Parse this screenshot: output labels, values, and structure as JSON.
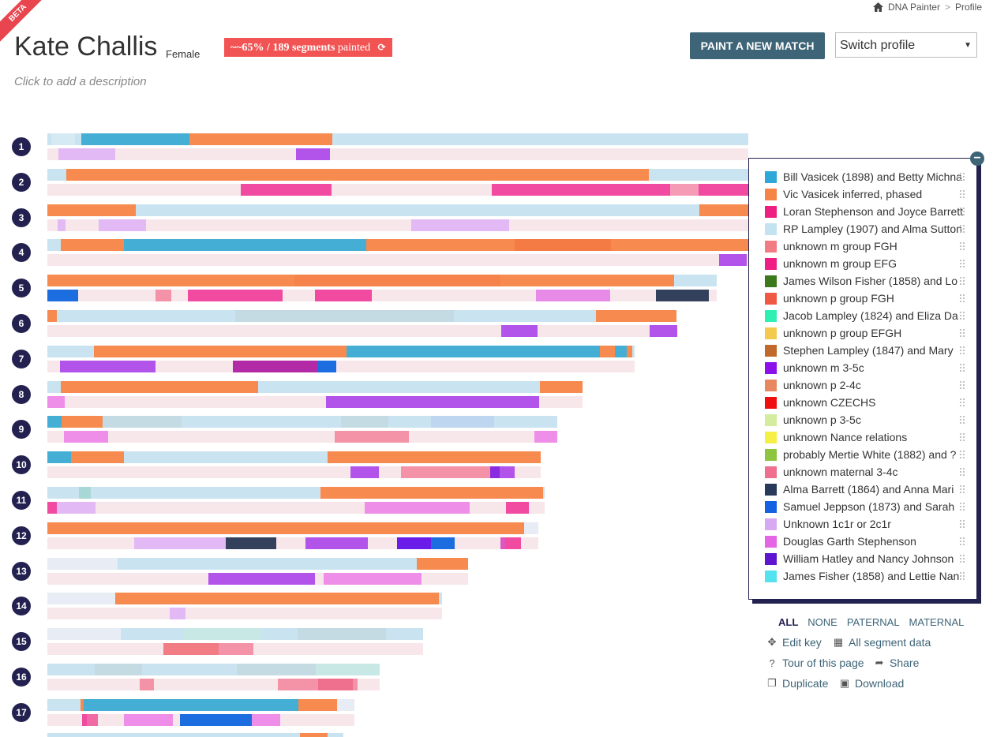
{
  "badge_beta": "BETA",
  "breadcrumb": {
    "home": "DNA Painter",
    "sep": ">",
    "current": "Profile"
  },
  "profile": {
    "name": "Kate Challis",
    "gender": "Female",
    "badge_main": "~65% / 189 segments",
    "badge_suffix": "painted",
    "description_placeholder": "Click to add a description"
  },
  "paint_button": "PAINT A NEW MATCH",
  "switch_profile": "Switch profile",
  "chromosomes": [
    "1",
    "2",
    "3",
    "4",
    "5",
    "6",
    "7",
    "8",
    "9",
    "10",
    "11",
    "12",
    "13",
    "14",
    "15",
    "16",
    "17"
  ],
  "legend": [
    {
      "label": "Bill Vasicek (1898) and Betty Michna",
      "color": "#2fa7d9"
    },
    {
      "label": "Vic Vasicek inferred, phased",
      "color": "#f58446"
    },
    {
      "label": "Loran Stephenson and Joyce Barrett",
      "color": "#ee1f80"
    },
    {
      "label": "RP Lampley (1907) and Alma Sutton",
      "color": "#c4e3f1"
    },
    {
      "label": "unknown m group FGH",
      "color": "#f27c84"
    },
    {
      "label": "unknown m group EFG",
      "color": "#ef1e86"
    },
    {
      "label": "James Wilson Fisher (1858) and Lo",
      "color": "#3a7a1b"
    },
    {
      "label": "unknown p group FGH",
      "color": "#ef5944"
    },
    {
      "label": "Jacob Lampley (1824) and Eliza Da",
      "color": "#2ef0b3"
    },
    {
      "label": "unknown p group EFGH",
      "color": "#f3ca4e"
    },
    {
      "label": "Stephen Lampley (1847) and Mary",
      "color": "#c1692b"
    },
    {
      "label": "unknown m 3-5c",
      "color": "#8b10ea"
    },
    {
      "label": "unknown p 2-4c",
      "color": "#e88862"
    },
    {
      "label": "unknown CZECHS",
      "color": "#f00f0f"
    },
    {
      "label": "unknown p 3-5c",
      "color": "#d3ec9e"
    },
    {
      "label": "unknown Nance relations",
      "color": "#f6f046"
    },
    {
      "label": "probably Mertie White (1882) and ?",
      "color": "#8dc53e"
    },
    {
      "label": "unknown maternal 3-4c",
      "color": "#ee6f8e"
    },
    {
      "label": "Alma Barrett (1864) and Anna Mari",
      "color": "#273a5a"
    },
    {
      "label": "Samuel Jeppson (1873) and Sarah",
      "color": "#1461e2"
    },
    {
      "label": "Unknown 1c1r or 2c1r",
      "color": "#d8a9f3"
    },
    {
      "label": "Douglas Garth Stephenson",
      "color": "#e466e4"
    },
    {
      "label": "William Hatley and Nancy Johnson",
      "color": "#5f15d0"
    },
    {
      "label": "James Fisher (1858) and Lettie Nan",
      "color": "#54e2ee"
    }
  ],
  "filters": [
    "ALL",
    "NONE",
    "PATERNAL",
    "MATERNAL"
  ],
  "tools": {
    "edit_key": "Edit key",
    "all_segment_data": "All segment data",
    "tour": "Tour of this page",
    "share": "Share",
    "duplicate": "Duplicate",
    "download": "Download"
  }
}
